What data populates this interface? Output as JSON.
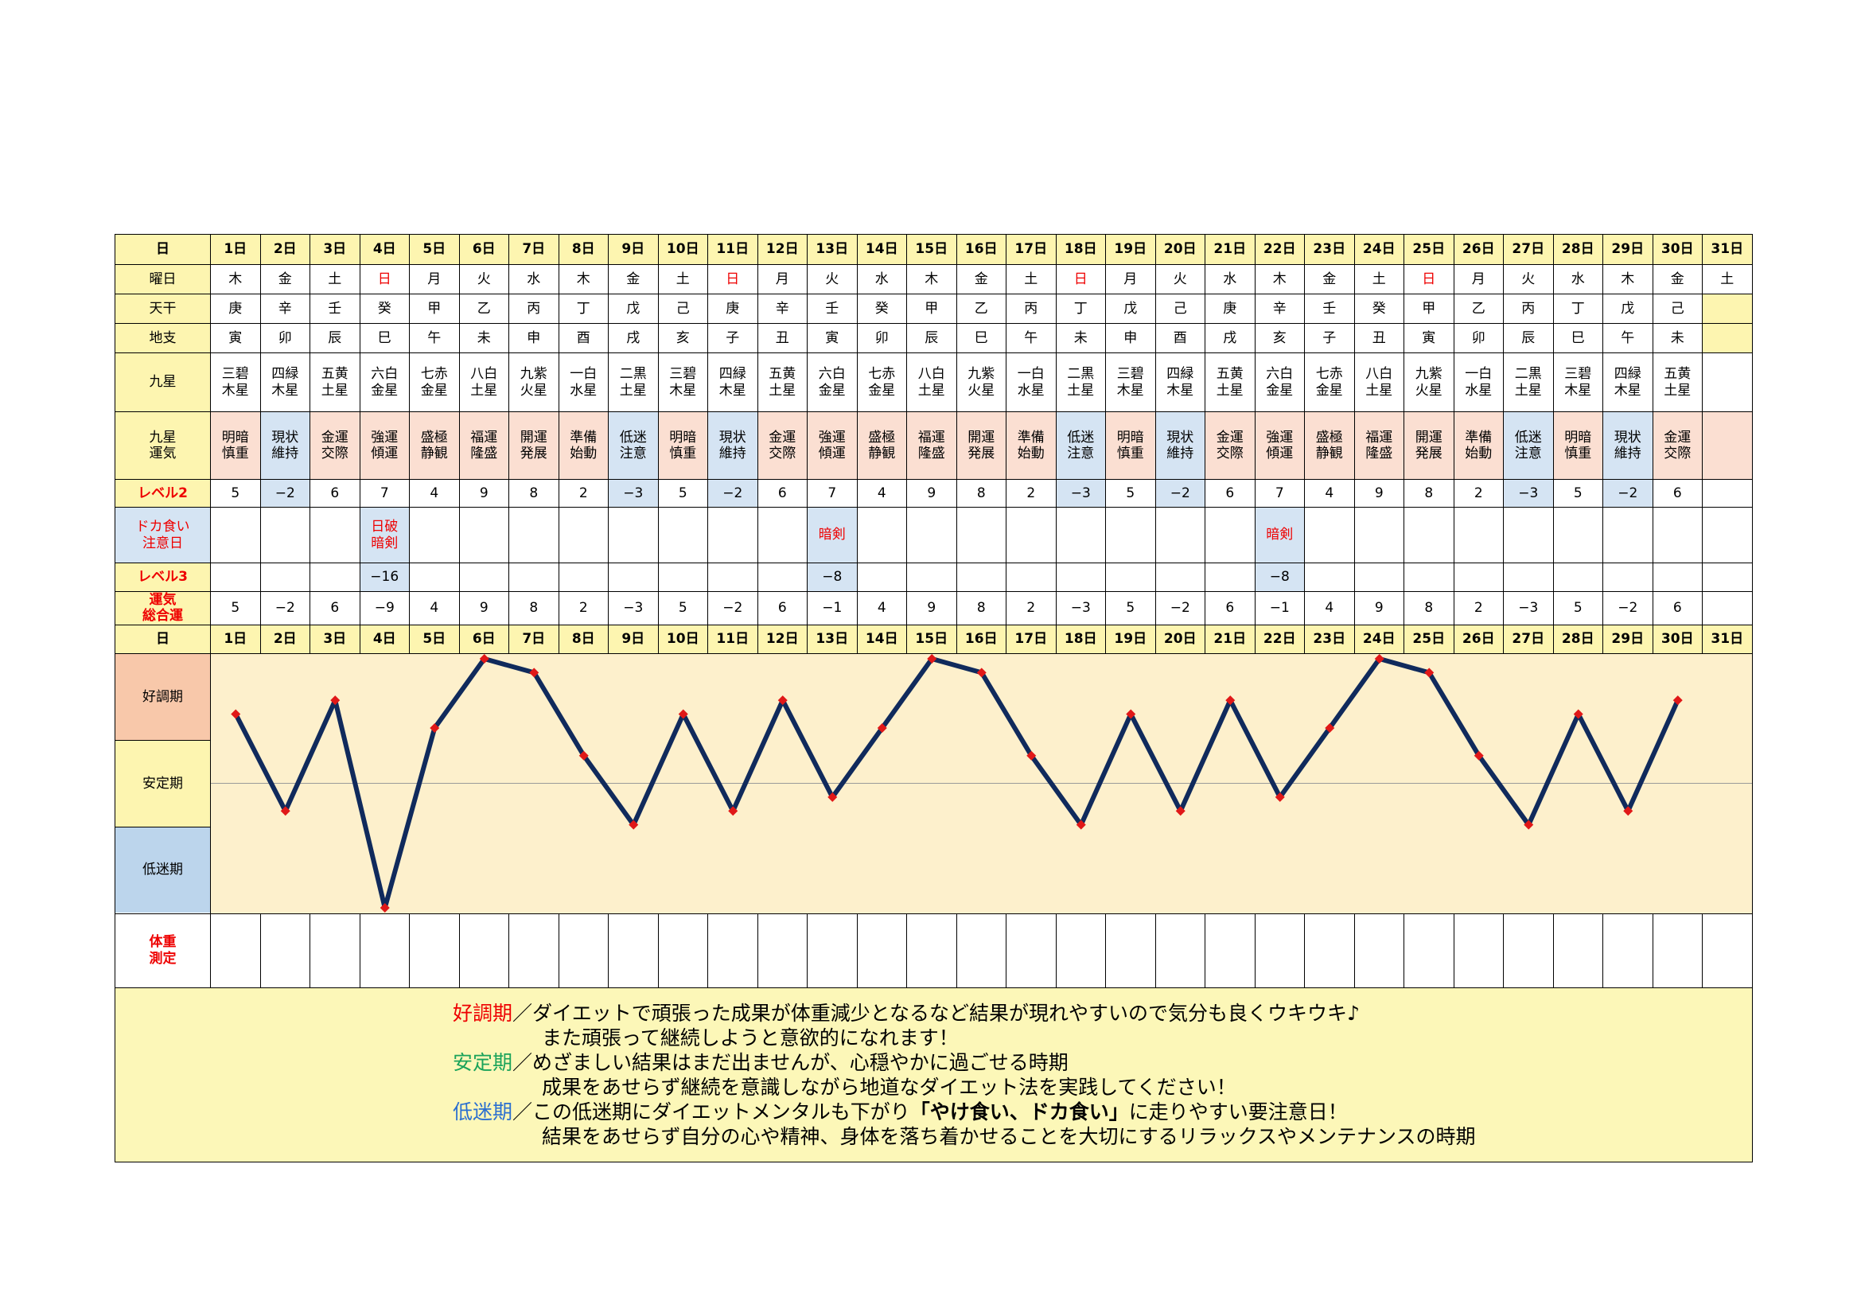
{
  "labels": {
    "day": "日",
    "weekday": "曜日",
    "kan": "天干",
    "shi": "地支",
    "star": "九星",
    "luck": "九星\n運気",
    "level2": "レベル2",
    "doka": "ドカ食い\n注意日",
    "level3": "レベル3",
    "total": "運気\n総合運",
    "weigh": "体重\n測定"
  },
  "phases": [
    "好調期",
    "安定期",
    "低迷期"
  ],
  "days": [
    "1日",
    "2日",
    "3日",
    "4日",
    "5日",
    "6日",
    "7日",
    "8日",
    "9日",
    "10日",
    "11日",
    "12日",
    "13日",
    "14日",
    "15日",
    "16日",
    "17日",
    "18日",
    "19日",
    "20日",
    "21日",
    "22日",
    "23日",
    "24日",
    "25日",
    "26日",
    "27日",
    "28日",
    "29日",
    "30日",
    "31日"
  ],
  "weekdays": [
    "木",
    "金",
    "土",
    "日",
    "月",
    "火",
    "水",
    "木",
    "金",
    "土",
    "日",
    "月",
    "火",
    "水",
    "木",
    "金",
    "土",
    "日",
    "月",
    "火",
    "水",
    "木",
    "金",
    "土",
    "日",
    "月",
    "火",
    "水",
    "木",
    "金",
    "土"
  ],
  "tenkan": [
    "庚",
    "辛",
    "壬",
    "癸",
    "甲",
    "乙",
    "丙",
    "丁",
    "戊",
    "己",
    "庚",
    "辛",
    "壬",
    "癸",
    "甲",
    "乙",
    "丙",
    "丁",
    "戊",
    "己",
    "庚",
    "辛",
    "壬",
    "癸",
    "甲",
    "乙",
    "丙",
    "丁",
    "戊",
    "己",
    ""
  ],
  "chishi": [
    "寅",
    "卯",
    "辰",
    "巳",
    "午",
    "未",
    "申",
    "酉",
    "戌",
    "亥",
    "子",
    "丑",
    "寅",
    "卯",
    "辰",
    "巳",
    "午",
    "未",
    "申",
    "酉",
    "戌",
    "亥",
    "子",
    "丑",
    "寅",
    "卯",
    "辰",
    "巳",
    "午",
    "未",
    ""
  ],
  "stars": [
    "三碧\n木星",
    "四緑\n木星",
    "五黄\n土星",
    "六白\n金星",
    "七赤\n金星",
    "八白\n土星",
    "九紫\n火星",
    "一白\n水星",
    "二黒\n土星",
    "三碧\n木星",
    "四緑\n木星",
    "五黄\n土星",
    "六白\n金星",
    "七赤\n金星",
    "八白\n土星",
    "九紫\n火星",
    "一白\n水星",
    "二黒\n土星",
    "三碧\n木星",
    "四緑\n木星",
    "五黄\n土星",
    "六白\n金星",
    "七赤\n金星",
    "八白\n土星",
    "九紫\n火星",
    "一白\n水星",
    "二黒\n土星",
    "三碧\n木星",
    "四緑\n木星",
    "五黄\n土星",
    ""
  ],
  "luck": [
    "明暗\n慎重",
    "現状\n維持",
    "金運\n交際",
    "強運\n傾運",
    "盛極\n静観",
    "福運\n隆盛",
    "開運\n発展",
    "準備\n始動",
    "低迷\n注意",
    "明暗\n慎重",
    "現状\n維持",
    "金運\n交際",
    "強運\n傾運",
    "盛極\n静観",
    "福運\n隆盛",
    "開運\n発展",
    "準備\n始動",
    "低迷\n注意",
    "明暗\n慎重",
    "現状\n維持",
    "金運\n交際",
    "強運\n傾運",
    "盛極\n静観",
    "福運\n隆盛",
    "開運\n発展",
    "準備\n始動",
    "低迷\n注意",
    "明暗\n慎重",
    "現状\n維持",
    "金運\n交際",
    ""
  ],
  "level2": [
    "5",
    "−2",
    "6",
    "7",
    "4",
    "9",
    "8",
    "2",
    "−3",
    "5",
    "−2",
    "6",
    "7",
    "4",
    "9",
    "8",
    "2",
    "−3",
    "5",
    "−2",
    "6",
    "7",
    "4",
    "9",
    "8",
    "2",
    "−3",
    "5",
    "−2",
    "6",
    ""
  ],
  "doka": [
    "",
    "",
    "",
    "日破\n暗剣",
    "",
    "",
    "",
    "",
    "",
    "",
    "",
    "",
    "暗剣",
    "",
    "",
    "",
    "",
    "",
    "",
    "",
    "",
    "暗剣",
    "",
    "",
    "",
    "",
    "",
    "",
    "",
    "",
    ""
  ],
  "level3": [
    "",
    "",
    "",
    "−16",
    "",
    "",
    "",
    "",
    "",
    "",
    "",
    "",
    "−8",
    "",
    "",
    "",
    "",
    "",
    "",
    "",
    "",
    "−8",
    "",
    "",
    "",
    "",
    "",
    "",
    "",
    "",
    ""
  ],
  "total": [
    "5",
    "−2",
    "6",
    "−9",
    "4",
    "9",
    "8",
    "2",
    "−3",
    "5",
    "−2",
    "6",
    "−1",
    "4",
    "9",
    "8",
    "2",
    "−3",
    "5",
    "−2",
    "6",
    "−1",
    "4",
    "9",
    "8",
    "2",
    "−3",
    "5",
    "−2",
    "6",
    ""
  ],
  "chart_data": {
    "type": "line",
    "x": [
      "1日",
      "2日",
      "3日",
      "4日",
      "5日",
      "6日",
      "7日",
      "8日",
      "9日",
      "10日",
      "11日",
      "12日",
      "13日",
      "14日",
      "15日",
      "16日",
      "17日",
      "18日",
      "19日",
      "20日",
      "21日",
      "22日",
      "23日",
      "24日",
      "25日",
      "26日",
      "27日",
      "28日",
      "29日",
      "30日"
    ],
    "values": [
      5,
      -2,
      6,
      -9,
      4,
      9,
      8,
      2,
      -3,
      5,
      -2,
      6,
      -1,
      4,
      9,
      8,
      2,
      -3,
      5,
      -2,
      6,
      -1,
      4,
      9,
      8,
      2,
      -3,
      5,
      -2,
      6
    ],
    "ylim": [
      -9,
      9
    ],
    "line_color": "#102a5c",
    "marker_color": "#e01818",
    "bands": [
      "好調期",
      "安定期",
      "低迷期"
    ]
  },
  "colors": {
    "header_yellow": "#fdf5b0",
    "pink": "#fbdfd2",
    "blue": "#d5e4f3",
    "chart_bg": "#fdf0cc",
    "red_text": "#ee0000"
  },
  "notes": {
    "good_label": "好調期",
    "good_text1": "／ダイエットで頑張った成果が体重減少となるなど結果が現れやすいので気分も良くウキウキ♪",
    "good_text2": "また頑張って継続しようと意欲的になれます！",
    "stable_label": "安定期",
    "stable_text1": "／めざましい結果はまだ出ませんが、心穏やかに過ごせる時期",
    "stable_text2": "成果をあせらず継続を意識しながら地道なダイエット法を実践してください！",
    "low_label": "低迷期",
    "low_text1a": "／この低迷期にダイエットメンタルも下がり",
    "low_text1b": "「やけ食い、ドカ食い」",
    "low_text1c": "に走りやすい要注意日！",
    "low_text2": "結果をあせらず自分の心や精神、身体を落ち着かせることを大切にするリラックスやメンテナンスの時期"
  }
}
